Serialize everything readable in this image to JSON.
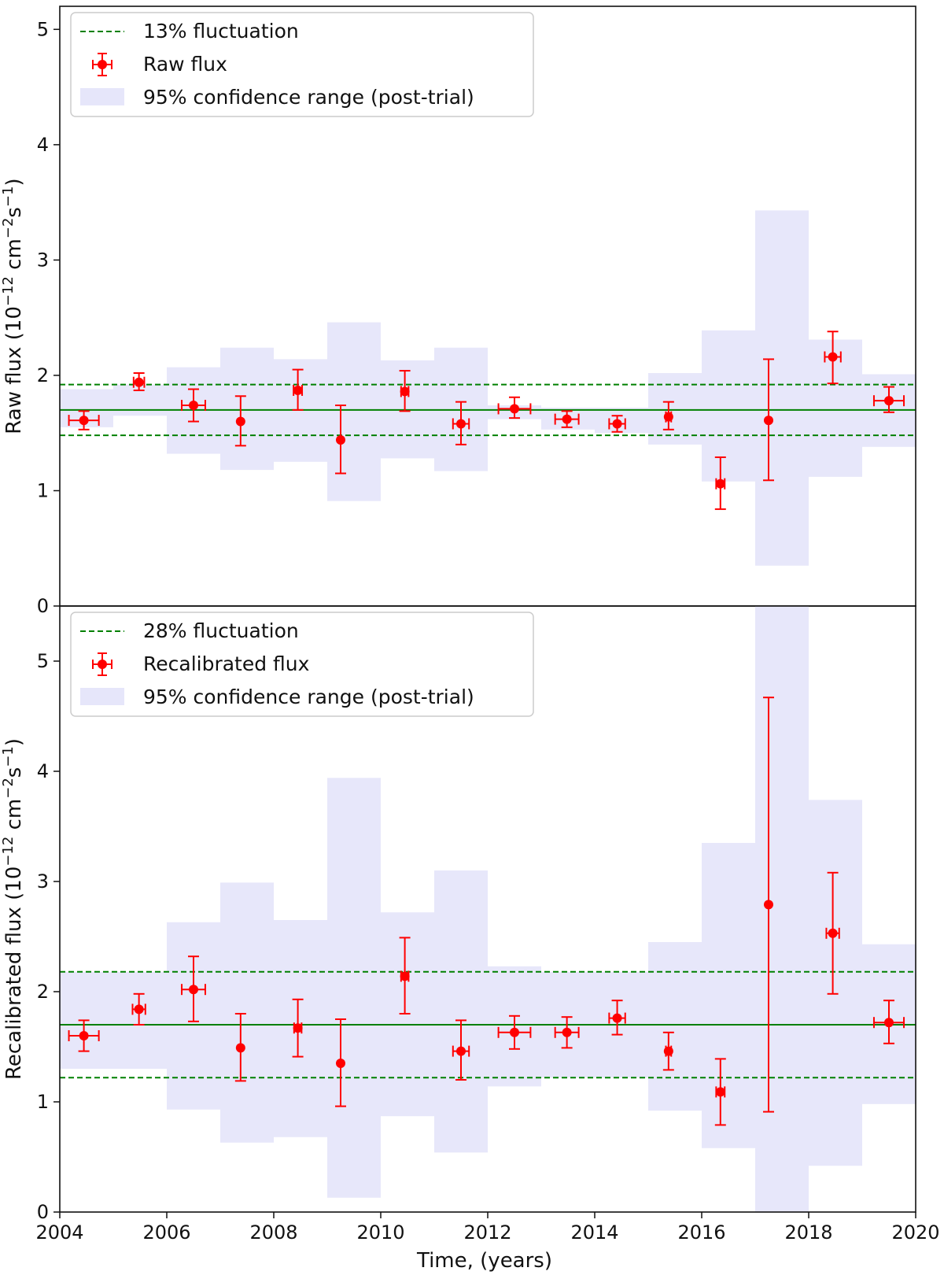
{
  "chart_data": [
    {
      "type": "scatter",
      "panel": "top",
      "ylabel": "Raw flux (10^-12 cm^-2 s^-1)",
      "ylabel_parts": {
        "prefix": "Raw flux (10",
        "exp1": "−12",
        "mid": " cm",
        "exp2": "−2",
        "mid2": "s",
        "exp3": "−1",
        "suffix": ")"
      },
      "ylim": [
        0,
        5.2
      ],
      "yticks": [
        "0",
        "1",
        "2",
        "3",
        "4",
        "5"
      ],
      "xlim": [
        2004,
        2020
      ],
      "mean": 1.7,
      "band": [
        1.48,
        1.92
      ],
      "legend": {
        "placement": "top-left",
        "entries": [
          "13% fluctuation",
          "Raw flux",
          "95% confidence range (post-trial)"
        ]
      },
      "confidence_bins": [
        {
          "x0": 2004,
          "x1": 2005,
          "lo": 1.55,
          "hi": 1.88
        },
        {
          "x0": 2005,
          "x1": 2006,
          "lo": 1.65,
          "hi": 1.92
        },
        {
          "x0": 2006,
          "x1": 2007,
          "lo": 1.32,
          "hi": 2.07
        },
        {
          "x0": 2007,
          "x1": 2008,
          "lo": 1.18,
          "hi": 2.24
        },
        {
          "x0": 2008,
          "x1": 2009,
          "lo": 1.25,
          "hi": 2.14
        },
        {
          "x0": 2009,
          "x1": 2010,
          "lo": 0.91,
          "hi": 2.46
        },
        {
          "x0": 2010,
          "x1": 2011,
          "lo": 1.28,
          "hi": 2.13
        },
        {
          "x0": 2011,
          "x1": 2012,
          "lo": 1.17,
          "hi": 2.24
        },
        {
          "x0": 2012,
          "x1": 2013,
          "lo": 1.62,
          "hi": 1.74
        },
        {
          "x0": 2013,
          "x1": 2014,
          "lo": 1.53,
          "hi": 1.72
        },
        {
          "x0": 2014,
          "x1": 2015,
          "lo": 1.5,
          "hi": 1.72
        },
        {
          "x0": 2015,
          "x1": 2016,
          "lo": 1.4,
          "hi": 2.02
        },
        {
          "x0": 2016,
          "x1": 2017,
          "lo": 1.08,
          "hi": 2.39
        },
        {
          "x0": 2017,
          "x1": 2018,
          "lo": 0.35,
          "hi": 3.43
        },
        {
          "x0": 2018,
          "x1": 2019,
          "lo": 1.12,
          "hi": 2.31
        },
        {
          "x0": 2019,
          "x1": 2020,
          "lo": 1.38,
          "hi": 2.01
        }
      ],
      "points": [
        {
          "x": 2004.45,
          "y": 1.61,
          "xerr": 0.28,
          "ylo": 1.53,
          "yhi": 1.69
        },
        {
          "x": 2005.48,
          "y": 1.94,
          "xerr": 0.1,
          "ylo": 1.87,
          "yhi": 2.02
        },
        {
          "x": 2006.5,
          "y": 1.74,
          "xerr": 0.22,
          "ylo": 1.6,
          "yhi": 1.88
        },
        {
          "x": 2007.38,
          "y": 1.6,
          "xerr": 0.0,
          "ylo": 1.39,
          "yhi": 1.82
        },
        {
          "x": 2008.45,
          "y": 1.87,
          "xerr": 0.08,
          "ylo": 1.7,
          "yhi": 2.05
        },
        {
          "x": 2009.25,
          "y": 1.44,
          "xerr": 0.0,
          "ylo": 1.15,
          "yhi": 1.74
        },
        {
          "x": 2010.45,
          "y": 1.86,
          "xerr": 0.07,
          "ylo": 1.69,
          "yhi": 2.04
        },
        {
          "x": 2011.5,
          "y": 1.58,
          "xerr": 0.15,
          "ylo": 1.4,
          "yhi": 1.77
        },
        {
          "x": 2012.5,
          "y": 1.71,
          "xerr": 0.3,
          "ylo": 1.63,
          "yhi": 1.81
        },
        {
          "x": 2013.48,
          "y": 1.62,
          "xerr": 0.22,
          "ylo": 1.55,
          "yhi": 1.69
        },
        {
          "x": 2014.42,
          "y": 1.58,
          "xerr": 0.15,
          "ylo": 1.51,
          "yhi": 1.65
        },
        {
          "x": 2015.38,
          "y": 1.64,
          "xerr": 0.05,
          "ylo": 1.53,
          "yhi": 1.77
        },
        {
          "x": 2016.35,
          "y": 1.06,
          "xerr": 0.08,
          "ylo": 0.84,
          "yhi": 1.29
        },
        {
          "x": 2017.25,
          "y": 1.61,
          "xerr": 0.0,
          "ylo": 1.09,
          "yhi": 2.14
        },
        {
          "x": 2018.45,
          "y": 2.16,
          "xerr": 0.15,
          "ylo": 1.93,
          "yhi": 2.38
        },
        {
          "x": 2019.5,
          "y": 1.78,
          "xerr": 0.28,
          "ylo": 1.68,
          "yhi": 1.9
        }
      ]
    },
    {
      "type": "scatter",
      "panel": "bottom",
      "ylabel": "Recalibrated flux (10^-12 cm^-2 s^-1)",
      "ylabel_parts": {
        "prefix": "Recalibrated flux (10",
        "exp1": "−12",
        "mid": " cm",
        "exp2": "−2",
        "mid2": "s",
        "exp3": "−1",
        "suffix": ")"
      },
      "ylim": [
        0,
        5.5
      ],
      "yticks": [
        "0",
        "1",
        "2",
        "3",
        "4",
        "5"
      ],
      "xlim": [
        2004,
        2020
      ],
      "xticks": [
        "2004",
        "2006",
        "2008",
        "2010",
        "2012",
        "2014",
        "2016",
        "2018",
        "2020"
      ],
      "xlabel": "Time, (years)",
      "mean": 1.7,
      "band": [
        1.22,
        2.18
      ],
      "legend": {
        "placement": "top-left",
        "entries": [
          "28% fluctuation",
          "Recalibrated flux",
          "95% confidence range (post-trial)"
        ]
      },
      "confidence_bins": [
        {
          "x0": 2004,
          "x1": 2005,
          "lo": 1.3,
          "hi": 2.18
        },
        {
          "x0": 2005,
          "x1": 2006,
          "lo": 1.3,
          "hi": 2.18
        },
        {
          "x0": 2006,
          "x1": 2007,
          "lo": 0.93,
          "hi": 2.63
        },
        {
          "x0": 2007,
          "x1": 2008,
          "lo": 0.63,
          "hi": 2.99
        },
        {
          "x0": 2008,
          "x1": 2009,
          "lo": 0.68,
          "hi": 2.65
        },
        {
          "x0": 2009,
          "x1": 2010,
          "lo": 0.13,
          "hi": 3.94
        },
        {
          "x0": 2010,
          "x1": 2011,
          "lo": 0.87,
          "hi": 2.72
        },
        {
          "x0": 2011,
          "x1": 2012,
          "lo": 0.54,
          "hi": 3.1
        },
        {
          "x0": 2012,
          "x1": 2013,
          "lo": 1.14,
          "hi": 2.23
        },
        {
          "x0": 2013,
          "x1": 2014,
          "lo": 1.22,
          "hi": 2.18
        },
        {
          "x0": 2014,
          "x1": 2015,
          "lo": 1.22,
          "hi": 2.18
        },
        {
          "x0": 2015,
          "x1": 2016,
          "lo": 0.92,
          "hi": 2.45
        },
        {
          "x0": 2016,
          "x1": 2017,
          "lo": 0.58,
          "hi": 3.35
        },
        {
          "x0": 2017,
          "x1": 2018,
          "lo": 0.0,
          "hi": 5.5
        },
        {
          "x0": 2018,
          "x1": 2019,
          "lo": 0.42,
          "hi": 3.74
        },
        {
          "x0": 2019,
          "x1": 2020,
          "lo": 0.98,
          "hi": 2.43
        }
      ],
      "points": [
        {
          "x": 2004.45,
          "y": 1.6,
          "xerr": 0.28,
          "ylo": 1.46,
          "yhi": 1.74
        },
        {
          "x": 2005.48,
          "y": 1.84,
          "xerr": 0.12,
          "ylo": 1.7,
          "yhi": 1.98
        },
        {
          "x": 2006.5,
          "y": 2.02,
          "xerr": 0.22,
          "ylo": 1.73,
          "yhi": 2.32
        },
        {
          "x": 2007.38,
          "y": 1.49,
          "xerr": 0.0,
          "ylo": 1.19,
          "yhi": 1.8
        },
        {
          "x": 2008.45,
          "y": 1.67,
          "xerr": 0.07,
          "ylo": 1.41,
          "yhi": 1.93
        },
        {
          "x": 2009.25,
          "y": 1.35,
          "xerr": 0.0,
          "ylo": 0.96,
          "yhi": 1.75
        },
        {
          "x": 2010.45,
          "y": 2.14,
          "xerr": 0.07,
          "ylo": 1.8,
          "yhi": 2.49
        },
        {
          "x": 2011.5,
          "y": 1.46,
          "xerr": 0.15,
          "ylo": 1.2,
          "yhi": 1.74
        },
        {
          "x": 2012.5,
          "y": 1.63,
          "xerr": 0.3,
          "ylo": 1.48,
          "yhi": 1.78
        },
        {
          "x": 2013.48,
          "y": 1.63,
          "xerr": 0.22,
          "ylo": 1.49,
          "yhi": 1.77
        },
        {
          "x": 2014.42,
          "y": 1.76,
          "xerr": 0.15,
          "ylo": 1.61,
          "yhi": 1.92
        },
        {
          "x": 2015.38,
          "y": 1.46,
          "xerr": 0.05,
          "ylo": 1.29,
          "yhi": 1.63
        },
        {
          "x": 2016.35,
          "y": 1.09,
          "xerr": 0.08,
          "ylo": 0.79,
          "yhi": 1.39
        },
        {
          "x": 2017.25,
          "y": 2.79,
          "xerr": 0.0,
          "ylo": 0.91,
          "yhi": 4.67
        },
        {
          "x": 2018.45,
          "y": 2.53,
          "xerr": 0.12,
          "ylo": 1.98,
          "yhi": 3.08
        },
        {
          "x": 2019.5,
          "y": 1.72,
          "xerr": 0.28,
          "ylo": 1.53,
          "yhi": 1.92
        }
      ]
    }
  ],
  "colors": {
    "points": "#ff0000",
    "mean_line": "#008000",
    "band_line": "#008000",
    "confidence_fill": "#e6e6fa"
  }
}
